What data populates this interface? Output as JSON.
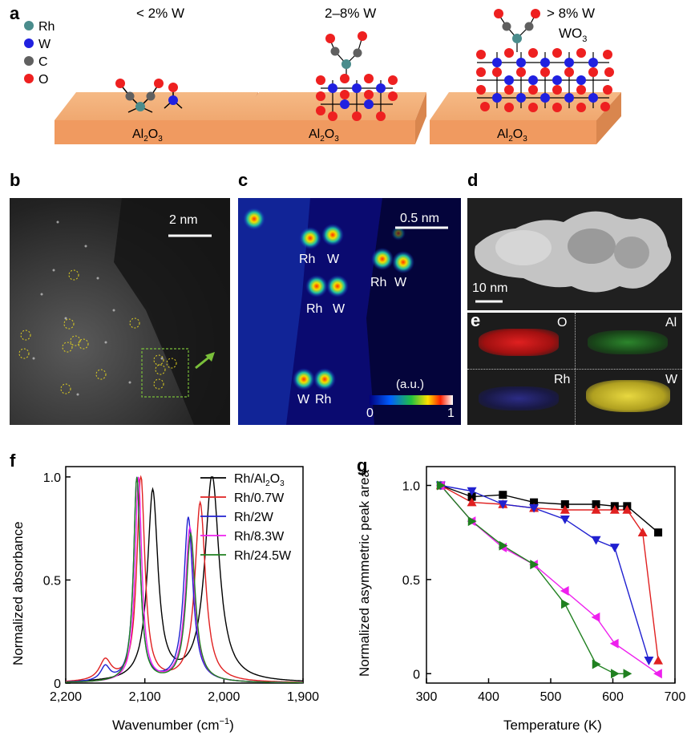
{
  "panels": {
    "a": {
      "label": "a",
      "legend": [
        {
          "name": "Rh",
          "color": "#4a8c8c"
        },
        {
          "name": "W",
          "color": "#2020e0"
        },
        {
          "name": "C",
          "color": "#606060"
        },
        {
          "name": "O",
          "color": "#ee2020"
        }
      ],
      "schemes": [
        {
          "title": "< 2% W",
          "substrate_main": "Al",
          "sub1": "2",
          "mid": "O",
          "sub2": "3"
        },
        {
          "title": "2–8% W",
          "substrate_main": "Al",
          "sub1": "2",
          "mid": "O",
          "sub2": "3"
        },
        {
          "title": "> 8% W",
          "subtitle": "WO",
          "subtitle_sub": "3",
          "substrate_main": "Al",
          "sub1": "2",
          "mid": "O",
          "sub2": "3"
        }
      ]
    },
    "b": {
      "label": "b",
      "scale": "2 nm"
    },
    "c": {
      "label": "c",
      "scale": "0.5 nm",
      "pairs": [
        "Rh",
        "W",
        "Rh",
        "W",
        "Rh",
        "W",
        "W",
        "Rh"
      ],
      "colorbar_unit": "(a.u.)",
      "colorbar_min": "0",
      "colorbar_max": "1"
    },
    "d": {
      "label": "d",
      "scale": "10 nm"
    },
    "e": {
      "label": "e",
      "maps": [
        "O",
        "Al",
        "Rh",
        "W"
      ]
    },
    "f": {
      "label": "f"
    },
    "g": {
      "label": "g"
    }
  },
  "chart_data": [
    {
      "type": "line",
      "panel": "f",
      "xlabel": "Wavenumber (cm",
      "xlabel_sup": "−1",
      "xlabel_end": ")",
      "ylabel": "Normalized absorbance",
      "xlim": [
        2200,
        1900
      ],
      "ylim": [
        0,
        1.05
      ],
      "xticks": [
        "2,200",
        "2,100",
        "2,000",
        "1,900"
      ],
      "yticks": [
        "0",
        "0.5",
        "1.0"
      ],
      "series": [
        {
          "name": "Rh/Al",
          "name_sub": "2",
          "name_mid": "O",
          "name_sub2": "3",
          "color": "#000000",
          "peaks": [
            {
              "center": 2090,
              "height": 0.92,
              "width": 8
            },
            {
              "center": 2015,
              "height": 1.0,
              "width": 11
            }
          ]
        },
        {
          "name": "Rh/0.7W",
          "color": "#e02020",
          "peaks": [
            {
              "center": 2105,
              "height": 1.0,
              "width": 6
            },
            {
              "center": 2030,
              "height": 0.87,
              "width": 8
            },
            {
              "center": 2150,
              "height": 0.1,
              "width": 9
            }
          ]
        },
        {
          "name": "Rh/2W",
          "color": "#2020d0",
          "peaks": [
            {
              "center": 2110,
              "height": 1.0,
              "width": 5
            },
            {
              "center": 2045,
              "height": 0.8,
              "width": 7
            },
            {
              "center": 2150,
              "height": 0.07,
              "width": 7
            }
          ]
        },
        {
          "name": "Rh/8.3W",
          "color": "#ee20ee",
          "peaks": [
            {
              "center": 2108,
              "height": 1.0,
              "width": 5
            },
            {
              "center": 2043,
              "height": 0.75,
              "width": 7
            }
          ]
        },
        {
          "name": "Rh/24.5W",
          "color": "#208020",
          "peaks": [
            {
              "center": 2110,
              "height": 1.0,
              "width": 5
            },
            {
              "center": 2042,
              "height": 0.72,
              "width": 7
            }
          ]
        }
      ]
    },
    {
      "type": "line",
      "panel": "g",
      "xlabel": "Temperature (K)",
      "ylabel": "Normalized asymmetric peak area",
      "xlim": [
        300,
        700
      ],
      "ylim": [
        -0.05,
        1.1
      ],
      "xticks": [
        "300",
        "400",
        "500",
        "600",
        "700"
      ],
      "yticks": [
        "0",
        "0.5",
        "1.0"
      ],
      "series": [
        {
          "color": "#000000",
          "marker": "square",
          "x": [
            323,
            373,
            423,
            473,
            523,
            573,
            603,
            623,
            673
          ],
          "y": [
            1.0,
            0.94,
            0.95,
            0.91,
            0.9,
            0.9,
            0.89,
            0.89,
            0.75
          ]
        },
        {
          "color": "#e02020",
          "marker": "triangle-up",
          "x": [
            323,
            373,
            423,
            473,
            523,
            573,
            603,
            623,
            648,
            673
          ],
          "y": [
            1.0,
            0.91,
            0.9,
            0.88,
            0.87,
            0.87,
            0.87,
            0.87,
            0.75,
            0.07
          ]
        },
        {
          "color": "#2020d0",
          "marker": "triangle-down",
          "x": [
            323,
            373,
            423,
            473,
            523,
            573,
            603,
            658
          ],
          "y": [
            1.0,
            0.97,
            0.9,
            0.88,
            0.82,
            0.71,
            0.67,
            0.07
          ]
        },
        {
          "color": "#ee20ee",
          "marker": "triangle-left",
          "x": [
            323,
            373,
            423,
            473,
            523,
            573,
            603,
            673
          ],
          "y": [
            1.0,
            0.81,
            0.67,
            0.58,
            0.44,
            0.3,
            0.16,
            0.0
          ]
        },
        {
          "color": "#208020",
          "marker": "triangle-right",
          "x": [
            323,
            373,
            423,
            473,
            523,
            573,
            603,
            623
          ],
          "y": [
            1.0,
            0.81,
            0.68,
            0.58,
            0.37,
            0.05,
            0.0,
            0.0
          ]
        }
      ]
    }
  ]
}
